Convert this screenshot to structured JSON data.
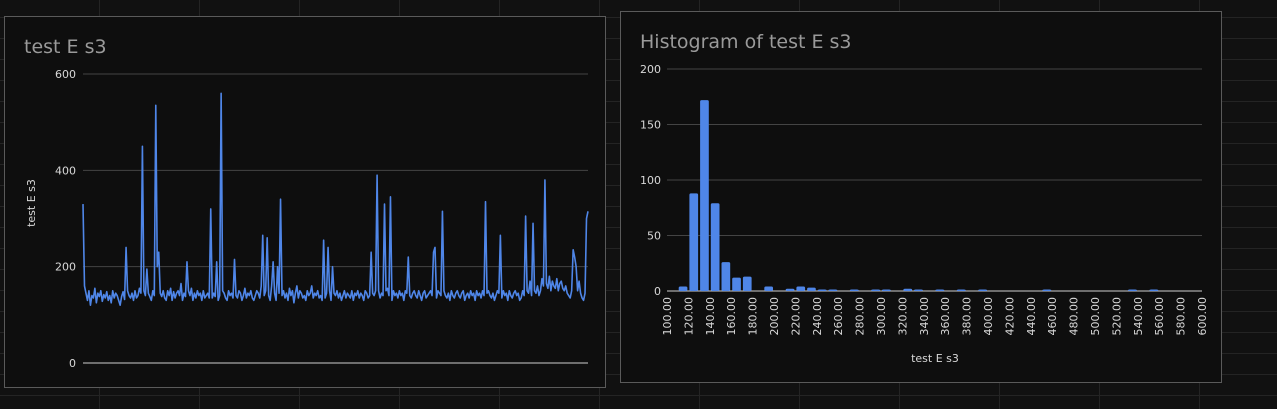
{
  "colors": {
    "series": "#4f86e8",
    "grid": "#444444",
    "axis": "#cfcfcf",
    "text": "#d8d8d8",
    "title": "#9a9a9a"
  },
  "chart_data": [
    {
      "type": "line",
      "title": "test E s3",
      "xlabel": "",
      "ylabel": "test E s3",
      "yticks": [
        "0",
        "200",
        "400",
        "600"
      ],
      "ylim": [
        0,
        600
      ],
      "grid": true,
      "series": [
        {
          "values": [
            330,
            160,
            145,
            130,
            150,
            120,
            140,
            135,
            155,
            125,
            145,
            138,
            150,
            128,
            142,
            135,
            148,
            130,
            140,
            125,
            150,
            135,
            145,
            140,
            130,
            120,
            138,
            148,
            132,
            240,
            150,
            140,
            135,
            145,
            130,
            150,
            135,
            140,
            155,
            145,
            450,
            150,
            140,
            195,
            145,
            138,
            130,
            150,
            140,
            535,
            200,
            230,
            145,
            138,
            150,
            135,
            130,
            150,
            140,
            155,
            130,
            148,
            135,
            145,
            150,
            140,
            165,
            130,
            145,
            138,
            210,
            150,
            140,
            155,
            130,
            145,
            135,
            150,
            140,
            145,
            130,
            150,
            135,
            140,
            145,
            135,
            320,
            135,
            145,
            138,
            210,
            130,
            140,
            560,
            150,
            145,
            135,
            130,
            150,
            140,
            145,
            135,
            215,
            140,
            135,
            150,
            145,
            130,
            140,
            155,
            135,
            145,
            140,
            150,
            135,
            130,
            140,
            150,
            145,
            135,
            160,
            265,
            140,
            150,
            260,
            140,
            130,
            160,
            210,
            145,
            130,
            200,
            145,
            340,
            140,
            150,
            135,
            145,
            130,
            155,
            140,
            150,
            125,
            145,
            160,
            135,
            150,
            145,
            135,
            140,
            130,
            150,
            140,
            145,
            160,
            135,
            145,
            140,
            150,
            135,
            140,
            130,
            255,
            135,
            145,
            240,
            150,
            130,
            200,
            145,
            140,
            150,
            135,
            145,
            130,
            140,
            150,
            135,
            145,
            140,
            135,
            150,
            130,
            145,
            140,
            150,
            135,
            145,
            140,
            130,
            150,
            145,
            135,
            140,
            230,
            145,
            140,
            150,
            390,
            150,
            135,
            145,
            140,
            330,
            150,
            155,
            140,
            345,
            130,
            150,
            140,
            145,
            135,
            150,
            140,
            145,
            130,
            150,
            145,
            220,
            140,
            135,
            145,
            150,
            140,
            135,
            150,
            140,
            130,
            145,
            150,
            135,
            140,
            145,
            150,
            140,
            230,
            240,
            135,
            150,
            145,
            140,
            315,
            150,
            140,
            135,
            145,
            130,
            150,
            140,
            135,
            145,
            150,
            140,
            135,
            145,
            150,
            130,
            140,
            145,
            135,
            150,
            140,
            145,
            130,
            150,
            140,
            145,
            135,
            150,
            140,
            335,
            145,
            150,
            140,
            135,
            145,
            130,
            140,
            150,
            145,
            265,
            135,
            150,
            140,
            145,
            130,
            150,
            140,
            135,
            145,
            150,
            140,
            145,
            130,
            135,
            150,
            140,
            305,
            150,
            145,
            170,
            140,
            290,
            150,
            145,
            160,
            140,
            150,
            175,
            160,
            380,
            165,
            155,
            180,
            150,
            170,
            160,
            155,
            175,
            150,
            165,
            170,
            155,
            150,
            160,
            145,
            140,
            135,
            150,
            235,
            220,
            200,
            150,
            170,
            145,
            135,
            130,
            145,
            300,
            315
          ]
        }
      ]
    },
    {
      "type": "bar",
      "title": "Histogram of test E s3",
      "xlabel": "test E s3",
      "ylabel": "",
      "ylim": [
        0,
        200
      ],
      "yticks": [
        "0",
        "50",
        "100",
        "150",
        "200"
      ],
      "xtick_labels": [
        "100.00",
        "120.00",
        "140.00",
        "160.00",
        "180.00",
        "200.00",
        "220.00",
        "240.00",
        "260.00",
        "280.00",
        "300.00",
        "320.00",
        "340.00",
        "360.00",
        "380.00",
        "400.00",
        "420.00",
        "440.00",
        "460.00",
        "480.00",
        "500.00",
        "520.00",
        "540.00",
        "560.00",
        "580.00",
        "600.00"
      ],
      "bin_width": 10,
      "bin_starts": [
        110,
        120,
        130,
        140,
        150,
        160,
        170,
        190,
        210,
        220,
        230,
        240,
        250,
        270,
        290,
        300,
        320,
        330,
        350,
        370,
        390,
        450,
        530,
        550
      ],
      "values": [
        4,
        88,
        172,
        79,
        26,
        12,
        13,
        4,
        2,
        4,
        3,
        1,
        1,
        1,
        1,
        1,
        2,
        1,
        1,
        1,
        1,
        1,
        1,
        1
      ],
      "grid": true
    }
  ]
}
